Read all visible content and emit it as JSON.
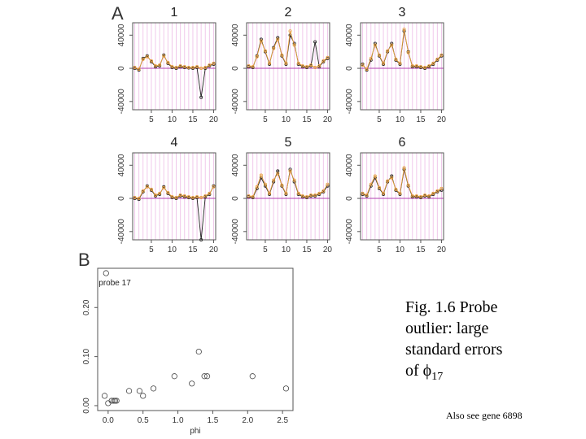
{
  "panel_labels": [
    "A",
    "B"
  ],
  "caption": {
    "lines": [
      "Fig. 1.6 Probe",
      "outlier: large",
      "standard errors",
      "of "
    ],
    "symbol": "ϕ",
    "subscript": "17"
  },
  "note": "Also see gene 6898",
  "chart_data": [
    {
      "type": "line",
      "title": "1",
      "grid": true,
      "x": [
        1,
        2,
        3,
        4,
        5,
        6,
        7,
        8,
        9,
        10,
        11,
        12,
        13,
        14,
        15,
        16,
        17,
        18,
        19,
        20
      ],
      "xlim": [
        0.5,
        20.5
      ],
      "ylim": [
        -50000,
        55000
      ],
      "xticks": [
        5,
        10,
        15,
        20
      ],
      "yticks": [
        -40000,
        0,
        40000
      ],
      "series": [
        {
          "color": "#222222",
          "values": [
            0,
            -2000,
            12000,
            15000,
            8000,
            2000,
            3000,
            16000,
            6000,
            1000,
            0,
            2000,
            1000,
            500,
            0,
            1000,
            -35000,
            0,
            3000,
            5000
          ]
        },
        {
          "color": "#e8a040",
          "values": [
            1000,
            -1000,
            11000,
            14000,
            9000,
            3000,
            4000,
            15000,
            7000,
            2000,
            1000,
            3000,
            2000,
            1000,
            1000,
            2000,
            0,
            1000,
            4000,
            6000
          ]
        }
      ]
    },
    {
      "type": "line",
      "title": "2",
      "grid": true,
      "x": [
        1,
        2,
        3,
        4,
        5,
        6,
        7,
        8,
        9,
        10,
        11,
        12,
        13,
        14,
        15,
        16,
        17,
        18,
        19,
        20
      ],
      "xlim": [
        0.5,
        20.5
      ],
      "ylim": [
        -50000,
        55000
      ],
      "xticks": [
        5,
        10,
        15,
        20
      ],
      "yticks": [
        -40000,
        0,
        40000
      ],
      "series": [
        {
          "color": "#222222",
          "values": [
            2000,
            1000,
            15000,
            35000,
            20000,
            5000,
            25000,
            37000,
            15000,
            5000,
            40000,
            30000,
            5000,
            2000,
            1000,
            3000,
            32000,
            2000,
            8000,
            12000
          ]
        },
        {
          "color": "#e8a040",
          "values": [
            3000,
            2000,
            14000,
            33000,
            21000,
            6000,
            24000,
            35000,
            16000,
            6000,
            45000,
            28000,
            6000,
            3000,
            2000,
            4000,
            1000,
            3000,
            9000,
            13000
          ]
        }
      ]
    },
    {
      "type": "line",
      "title": "3",
      "grid": true,
      "x": [
        1,
        2,
        3,
        4,
        5,
        6,
        7,
        8,
        9,
        10,
        11,
        12,
        13,
        14,
        15,
        16,
        17,
        18,
        19,
        20
      ],
      "xlim": [
        0.5,
        20.5
      ],
      "ylim": [
        -50000,
        55000
      ],
      "xticks": [
        5,
        10,
        15,
        20
      ],
      "yticks": [
        -40000,
        0,
        40000
      ],
      "series": [
        {
          "color": "#222222",
          "values": [
            5000,
            -2000,
            10000,
            30000,
            15000,
            5000,
            20000,
            30000,
            10000,
            5000,
            45000,
            20000,
            2000,
            2000,
            1000,
            0,
            2000,
            5000,
            10000,
            15000
          ]
        },
        {
          "color": "#e8a040",
          "values": [
            4000,
            -1000,
            12000,
            28000,
            16000,
            6000,
            21000,
            28000,
            11000,
            6000,
            47000,
            19000,
            3000,
            3000,
            2000,
            1000,
            3000,
            6000,
            11000,
            16000
          ]
        }
      ]
    },
    {
      "type": "line",
      "title": "4",
      "grid": true,
      "x": [
        1,
        2,
        3,
        4,
        5,
        6,
        7,
        8,
        9,
        10,
        11,
        12,
        13,
        14,
        15,
        16,
        17,
        18,
        19,
        20
      ],
      "xlim": [
        0.5,
        20.5
      ],
      "ylim": [
        -50000,
        55000
      ],
      "xticks": [
        5,
        10,
        15,
        20
      ],
      "yticks": [
        -40000,
        0,
        40000
      ],
      "series": [
        {
          "color": "#222222",
          "values": [
            0,
            -1000,
            8000,
            15000,
            10000,
            3000,
            5000,
            14000,
            6000,
            1000,
            0,
            3000,
            2000,
            1000,
            0,
            1000,
            -50000,
            2000,
            5000,
            15000
          ]
        },
        {
          "color": "#e8a040",
          "values": [
            1000,
            0,
            9000,
            14000,
            11000,
            4000,
            6000,
            13000,
            7000,
            2000,
            1000,
            4000,
            3000,
            2000,
            1000,
            2000,
            1000,
            3000,
            6000,
            14000
          ]
        }
      ]
    },
    {
      "type": "line",
      "title": "5",
      "grid": true,
      "x": [
        1,
        2,
        3,
        4,
        5,
        6,
        7,
        8,
        9,
        10,
        11,
        12,
        13,
        14,
        15,
        16,
        17,
        18,
        19,
        20
      ],
      "xlim": [
        0.5,
        20.5
      ],
      "ylim": [
        -50000,
        55000
      ],
      "xticks": [
        5,
        10,
        15,
        20
      ],
      "yticks": [
        -40000,
        0,
        40000
      ],
      "series": [
        {
          "color": "#222222",
          "values": [
            2000,
            1000,
            12000,
            25000,
            15000,
            5000,
            20000,
            33000,
            15000,
            5000,
            35000,
            20000,
            5000,
            2000,
            1000,
            3000,
            3000,
            5000,
            8000,
            15000
          ]
        },
        {
          "color": "#e8a040",
          "values": [
            3000,
            2000,
            14000,
            28000,
            17000,
            6000,
            22000,
            30000,
            16000,
            6000,
            33000,
            22000,
            6000,
            3000,
            2000,
            4000,
            4000,
            6000,
            9000,
            17000
          ]
        }
      ]
    },
    {
      "type": "line",
      "title": "6",
      "grid": true,
      "x": [
        1,
        2,
        3,
        4,
        5,
        6,
        7,
        8,
        9,
        10,
        11,
        12,
        13,
        14,
        15,
        16,
        17,
        18,
        19,
        20
      ],
      "xlim": [
        0.5,
        20.5
      ],
      "ylim": [
        -50000,
        55000
      ],
      "xticks": [
        5,
        10,
        15,
        20
      ],
      "yticks": [
        -40000,
        0,
        40000
      ],
      "series": [
        {
          "color": "#222222",
          "values": [
            5000,
            3000,
            15000,
            25000,
            12000,
            5000,
            20000,
            27000,
            10000,
            5000,
            35000,
            15000,
            2000,
            2000,
            1000,
            3000,
            2000,
            5000,
            8000,
            10000
          ]
        },
        {
          "color": "#e8a040",
          "values": [
            6000,
            4000,
            17000,
            27000,
            13000,
            6000,
            21000,
            25000,
            11000,
            6000,
            37000,
            16000,
            3000,
            3000,
            2000,
            4000,
            3000,
            6000,
            9000,
            12000
          ]
        }
      ]
    },
    {
      "type": "scatter",
      "xlabel": "phi",
      "annotation": "probe 17",
      "color": "#444444",
      "x": [
        -0.03,
        -0.05,
        0.0,
        0.05,
        0.08,
        0.1,
        0.12,
        0.3,
        0.45,
        0.5,
        0.65,
        0.95,
        1.2,
        1.3,
        1.38,
        1.42,
        2.07,
        2.55
      ],
      "values": [
        0.27,
        0.02,
        0.005,
        0.01,
        0.01,
        0.01,
        0.01,
        0.03,
        0.03,
        0.02,
        0.035,
        0.06,
        0.045,
        0.11,
        0.06,
        0.06,
        0.06,
        0.035
      ],
      "xlim": [
        -0.15,
        2.65
      ],
      "ylim": [
        -0.01,
        0.28
      ],
      "xticks": [
        {
          "value": 0,
          "label": "0.0"
        },
        0.5,
        {
          "value": 1,
          "label": "1.0"
        },
        1.5,
        {
          "value": 2,
          "label": "2.0"
        },
        2.5
      ],
      "yticks": [
        {
          "value": 0,
          "label": "0.00"
        },
        {
          "value": 0.1,
          "label": "0.10"
        },
        {
          "value": 0.2,
          "label": "0.20"
        }
      ]
    }
  ]
}
